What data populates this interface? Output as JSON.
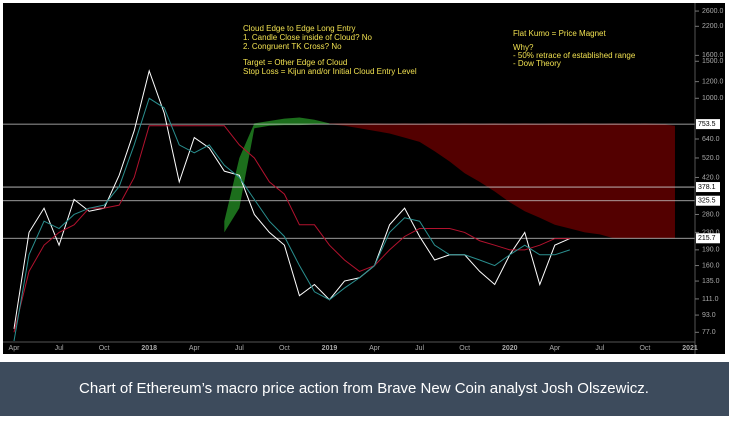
{
  "chart_data": {
    "type": "line",
    "log_scale": true,
    "grid": false,
    "background": "#000000",
    "caption_background": "#3d4b5c",
    "categories": [
      "Apr",
      null,
      null,
      "Jul",
      null,
      null,
      "Oct",
      null,
      null,
      "2018",
      null,
      null,
      "Apr",
      null,
      null,
      "Jul",
      null,
      null,
      "Oct",
      null,
      null,
      "2019",
      null,
      null,
      "Apr",
      null,
      null,
      "Jul",
      null,
      null,
      "Oct",
      null,
      null,
      "2020",
      null,
      null,
      "Apr",
      null,
      null,
      "Jul",
      null,
      null,
      "Oct",
      null,
      null,
      "2021"
    ],
    "ylim": [
      67,
      2935
    ],
    "yticks": [
      {
        "value": 2600,
        "label": "2600.0"
      },
      {
        "value": 2200,
        "label": "2200.0"
      },
      {
        "value": 1600,
        "label": "1600.0"
      },
      {
        "value": 1500,
        "label": "1500.0"
      },
      {
        "value": 1200,
        "label": "1200.0"
      },
      {
        "value": 1000,
        "label": "1000.0"
      },
      {
        "value": 640,
        "label": "640.0"
      },
      {
        "value": 520,
        "label": "520.0"
      },
      {
        "value": 420,
        "label": "420.0"
      },
      {
        "value": 280,
        "label": "280.0"
      },
      {
        "value": 230,
        "label": "230.0"
      },
      {
        "value": 190,
        "label": "190.0"
      },
      {
        "value": 160,
        "label": "160.0"
      },
      {
        "value": 135,
        "label": "135.0"
      },
      {
        "value": 111,
        "label": "111.0"
      },
      {
        "value": 93,
        "label": "93.0"
      },
      {
        "value": 77,
        "label": "77.0"
      }
    ],
    "hlines": [
      753.5,
      378.1,
      325.5,
      215.7
    ],
    "clouds": [
      {
        "color": "#1f7a1f",
        "lower": [
          null,
          null,
          null,
          null,
          null,
          null,
          null,
          null,
          null,
          null,
          null,
          null,
          null,
          null,
          230,
          300,
          720,
          740,
          745,
          745,
          750,
          753,
          null,
          null,
          null,
          null,
          null,
          null,
          null,
          null,
          null,
          null,
          null,
          null,
          null,
          null,
          null,
          null,
          null,
          null,
          null,
          null,
          null,
          null,
          null,
          null
        ],
        "upper": [
          null,
          null,
          null,
          null,
          null,
          null,
          null,
          null,
          null,
          null,
          null,
          null,
          null,
          null,
          260,
          520,
          760,
          780,
          800,
          810,
          790,
          760,
          null,
          null,
          null,
          null,
          null,
          null,
          null,
          null,
          null,
          null,
          null,
          null,
          null,
          null,
          null,
          null,
          null,
          null,
          null,
          null,
          null,
          null,
          null,
          null
        ]
      },
      {
        "color": "#5c0000",
        "lower": [
          null,
          null,
          null,
          null,
          null,
          null,
          null,
          null,
          null,
          null,
          null,
          null,
          null,
          null,
          null,
          null,
          null,
          null,
          null,
          null,
          null,
          753,
          740,
          720,
          700,
          680,
          650,
          620,
          560,
          500,
          440,
          400,
          360,
          320,
          290,
          270,
          250,
          240,
          230,
          225,
          215,
          215,
          215,
          215,
          215,
          null
        ],
        "upper": [
          null,
          null,
          null,
          null,
          null,
          null,
          null,
          null,
          null,
          null,
          null,
          null,
          null,
          null,
          null,
          null,
          null,
          null,
          null,
          null,
          null,
          760,
          760,
          758,
          760,
          757,
          760,
          758,
          760,
          757,
          760,
          758,
          760,
          757,
          760,
          758,
          760,
          757,
          760,
          758,
          760,
          757,
          760,
          755,
          740,
          null
        ]
      }
    ],
    "series": [
      {
        "color": "#ffffff",
        "values": [
          80,
          230,
          300,
          200,
          330,
          290,
          300,
          430,
          700,
          1350,
          850,
          400,
          650,
          580,
          450,
          430,
          280,
          230,
          200,
          115,
          130,
          110,
          135,
          140,
          160,
          250,
          300,
          220,
          170,
          180,
          180,
          150,
          130,
          180,
          230,
          130,
          200,
          215,
          null,
          null,
          null,
          null,
          null,
          null,
          null,
          null
        ]
      },
      {
        "color": "#b3122e",
        "values": [
          77,
          150,
          200,
          230,
          250,
          300,
          300,
          310,
          420,
          740,
          740,
          740,
          740,
          740,
          740,
          600,
          520,
          400,
          350,
          250,
          250,
          200,
          170,
          150,
          160,
          190,
          220,
          240,
          240,
          240,
          230,
          210,
          200,
          190,
          190,
          200,
          215,
          215,
          null,
          null,
          null,
          null,
          null,
          null,
          null,
          null
        ]
      },
      {
        "color": "#2a8f8f",
        "values": [
          70,
          180,
          260,
          240,
          280,
          300,
          310,
          380,
          600,
          1000,
          900,
          600,
          550,
          600,
          480,
          420,
          330,
          260,
          220,
          160,
          120,
          110,
          125,
          140,
          160,
          230,
          270,
          260,
          200,
          180,
          180,
          170,
          160,
          180,
          200,
          180,
          180,
          190,
          null,
          null,
          null,
          null,
          null,
          null,
          null,
          null
        ]
      }
    ],
    "annotations_left": [
      "Cloud Edge to Edge Long Entry",
      "1. Candle Close inside of Cloud? No",
      "2. Congruent TK Cross? No",
      "Target = Other Edge of Cloud",
      "Stop Loss = Kijun and/or Initial Cloud Entry Level"
    ],
    "annotations_right": [
      "Flat Kumo = Price Magnet",
      "Why?",
      "- 50% retrace of established range",
      "- Dow Theory"
    ],
    "caption": "Chart of Ethereum’s macro price action from Brave New Coin analyst Josh Olszewicz."
  }
}
